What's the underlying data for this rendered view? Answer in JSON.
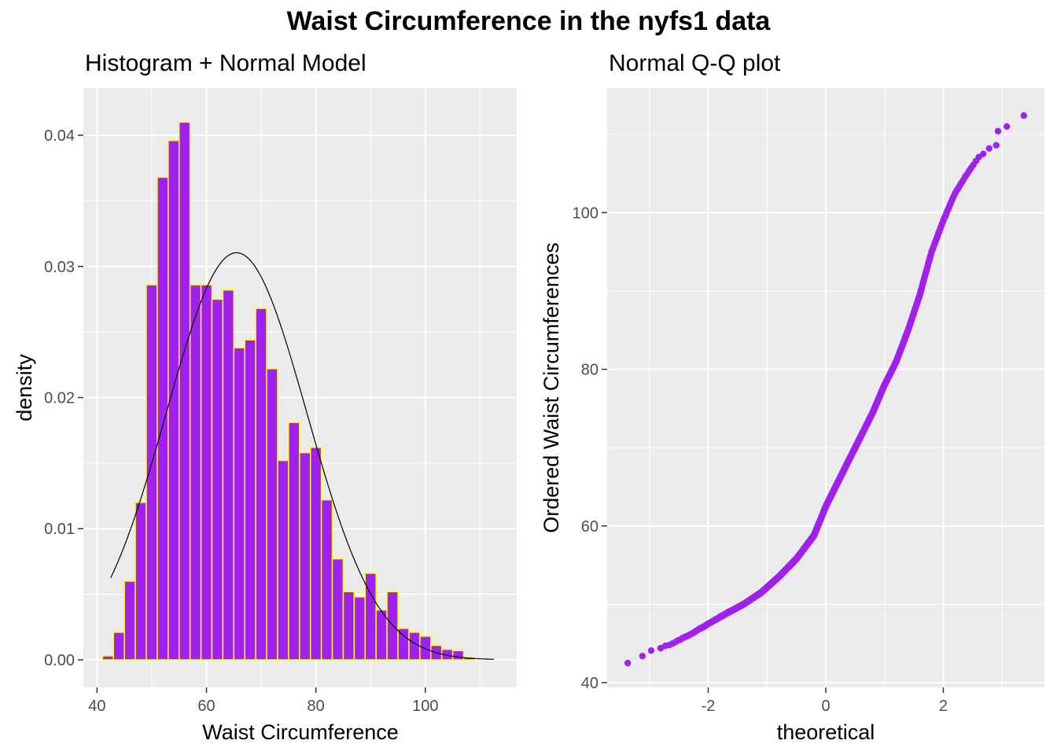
{
  "figure": {
    "title": "Waist Circumference in the nyfs1 data"
  },
  "colors": {
    "panel_bg": "#EBEBEB",
    "grid": "#FFFFFF",
    "bar_fill": "#A020F0",
    "bar_outline": "#FFFF00",
    "qq_points": "#A020F0",
    "normal_curve": "#000000",
    "tick_text": "#4D4D4D"
  },
  "chart_data": [
    {
      "type": "bar",
      "subtitle": "Histogram + Normal Model",
      "xlabel": "Waist Circumference",
      "ylabel": "density",
      "xlim": [
        37.5,
        116.7
      ],
      "ylim": [
        -0.0021,
        0.0436
      ],
      "x_ticks": [
        40,
        60,
        80,
        100
      ],
      "x_tick_labels": [
        "40",
        "60",
        "80",
        "100"
      ],
      "y_ticks": [
        0.0,
        0.01,
        0.02,
        0.03,
        0.04
      ],
      "y_tick_labels": [
        "0.00",
        "0.01",
        "0.02",
        "0.03",
        "0.04"
      ],
      "grid": true,
      "bin_width": 2,
      "bin_start": 41,
      "densities": [
        0.0003,
        0.0021,
        0.006,
        0.012,
        0.0286,
        0.0368,
        0.0396,
        0.041,
        0.0286,
        0.0286,
        0.0275,
        0.0282,
        0.0238,
        0.0244,
        0.0268,
        0.0222,
        0.0152,
        0.0181,
        0.0158,
        0.0162,
        0.0122,
        0.0077,
        0.0052,
        0.0048,
        0.0066,
        0.0038,
        0.0052,
        0.0024,
        0.0021,
        0.0018,
        0.0011,
        0.0008,
        0.0007,
        0.0002
      ],
      "normal_model": {
        "mean": 65.5,
        "sd": 12.85,
        "x_range": [
          42.5,
          112.5
        ]
      }
    },
    {
      "type": "scatter",
      "subtitle": "Normal Q-Q plot",
      "xlabel": "theoretical",
      "ylabel": "Ordered Waist Circumferences",
      "xlim": [
        -3.72,
        3.72
      ],
      "ylim": [
        39.4,
        115.9
      ],
      "x_ticks": [
        -2,
        0,
        2
      ],
      "x_tick_labels": [
        "-2",
        "0",
        "2"
      ],
      "y_ticks": [
        40,
        60,
        80,
        100
      ],
      "y_tick_labels": [
        "40",
        "60",
        "80",
        "100"
      ],
      "grid": true,
      "n_points": 1416,
      "quantile_curve": [
        [
          -3.37,
          42.5
        ],
        [
          -3.1,
          43.5
        ],
        [
          -2.9,
          44.2
        ],
        [
          -2.6,
          45.0
        ],
        [
          -2.3,
          46.2
        ],
        [
          -2.0,
          47.5
        ],
        [
          -1.7,
          48.8
        ],
        [
          -1.4,
          50.0
        ],
        [
          -1.1,
          51.5
        ],
        [
          -0.8,
          53.5
        ],
        [
          -0.5,
          55.8
        ],
        [
          -0.2,
          58.8
        ],
        [
          0.0,
          62.5
        ],
        [
          0.2,
          65.5
        ],
        [
          0.4,
          68.5
        ],
        [
          0.6,
          71.5
        ],
        [
          0.8,
          74.5
        ],
        [
          1.0,
          78.0
        ],
        [
          1.2,
          81.0
        ],
        [
          1.4,
          85.0
        ],
        [
          1.6,
          89.5
        ],
        [
          1.8,
          95.0
        ],
        [
          2.0,
          99.0
        ],
        [
          2.2,
          102.5
        ],
        [
          2.45,
          105.5
        ],
        [
          2.7,
          108.0
        ],
        [
          2.9,
          110.0
        ],
        [
          3.1,
          111.0
        ],
        [
          3.37,
          112.5
        ]
      ],
      "tail_points": [
        [
          -3.37,
          42.5
        ],
        [
          -3.12,
          43.4
        ],
        [
          -2.97,
          44.1
        ],
        [
          2.68,
          107.5
        ],
        [
          2.78,
          108.2
        ],
        [
          2.9,
          108.6
        ],
        [
          2.93,
          110.4
        ],
        [
          3.08,
          111.0
        ],
        [
          3.37,
          112.4
        ]
      ]
    }
  ]
}
